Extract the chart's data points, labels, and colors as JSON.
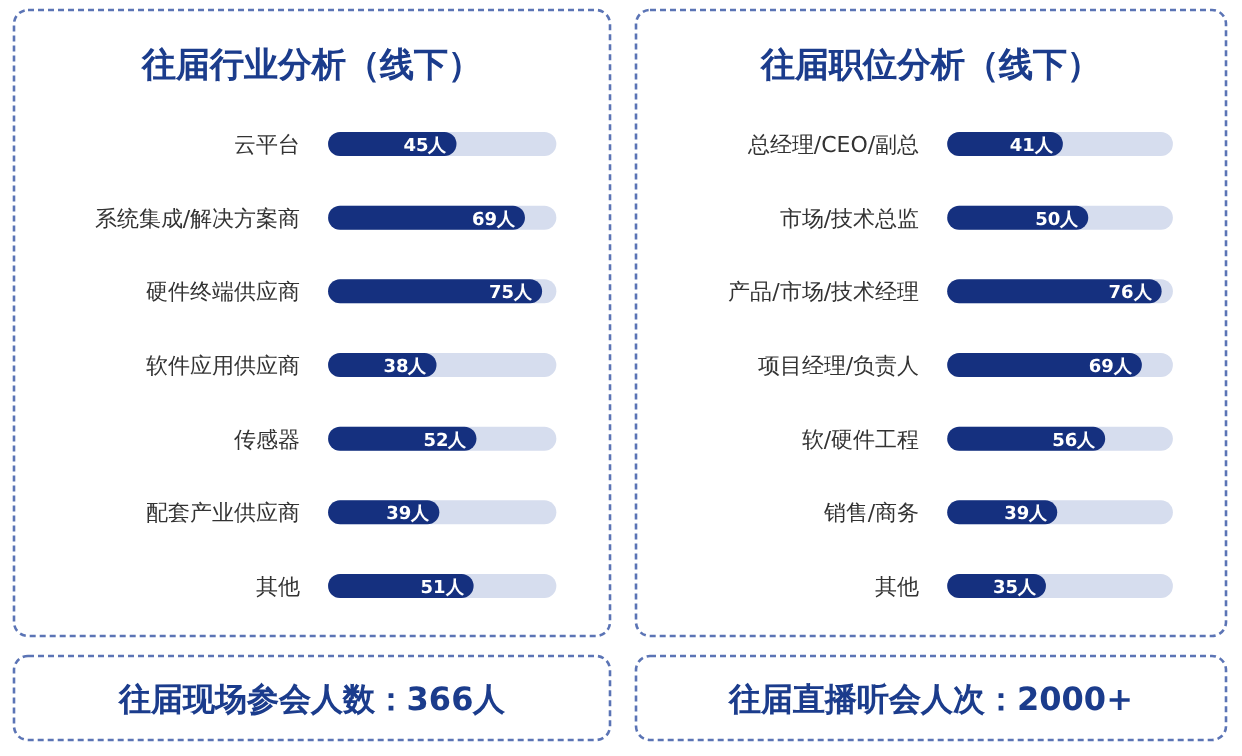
{
  "chart_data": [
    {
      "type": "bar",
      "orientation": "horizontal",
      "title": "往届行业分析（线下）",
      "categories": [
        "云平台",
        "系统集成/解决方案商",
        "硬件终端供应商",
        "软件应用供应商",
        "传感器",
        "配套产业供应商",
        "其他"
      ],
      "values": [
        45,
        69,
        75,
        38,
        52,
        39,
        51
      ],
      "value_labels": [
        "45人",
        "69人",
        "75人",
        "38人",
        "52人",
        "39人",
        "51人"
      ],
      "color": "#15307f",
      "xlim": [
        0,
        80
      ],
      "tick_labels": "y"
    },
    {
      "type": "bar",
      "orientation": "horizontal",
      "title": "往届职位分析（线下）",
      "categories": [
        "总经理/CEO/副总",
        "市场/技术总监",
        "产品/市场/技术经理",
        "项目经理/负责人",
        "软/硬件工程",
        "销售/商务",
        "其他"
      ],
      "values": [
        41,
        50,
        76,
        69,
        56,
        39,
        35
      ],
      "value_labels": [
        "41人",
        "50人",
        "76人",
        "69人",
        "56人",
        "39人",
        "35人"
      ],
      "color": "#15307f",
      "xlim": [
        0,
        80
      ],
      "tick_labels": "y"
    },
    {
      "type": "other",
      "title": "往届现场参会人数：366人"
    },
    {
      "type": "other",
      "title": "往届直播听会人次：2000+"
    }
  ]
}
